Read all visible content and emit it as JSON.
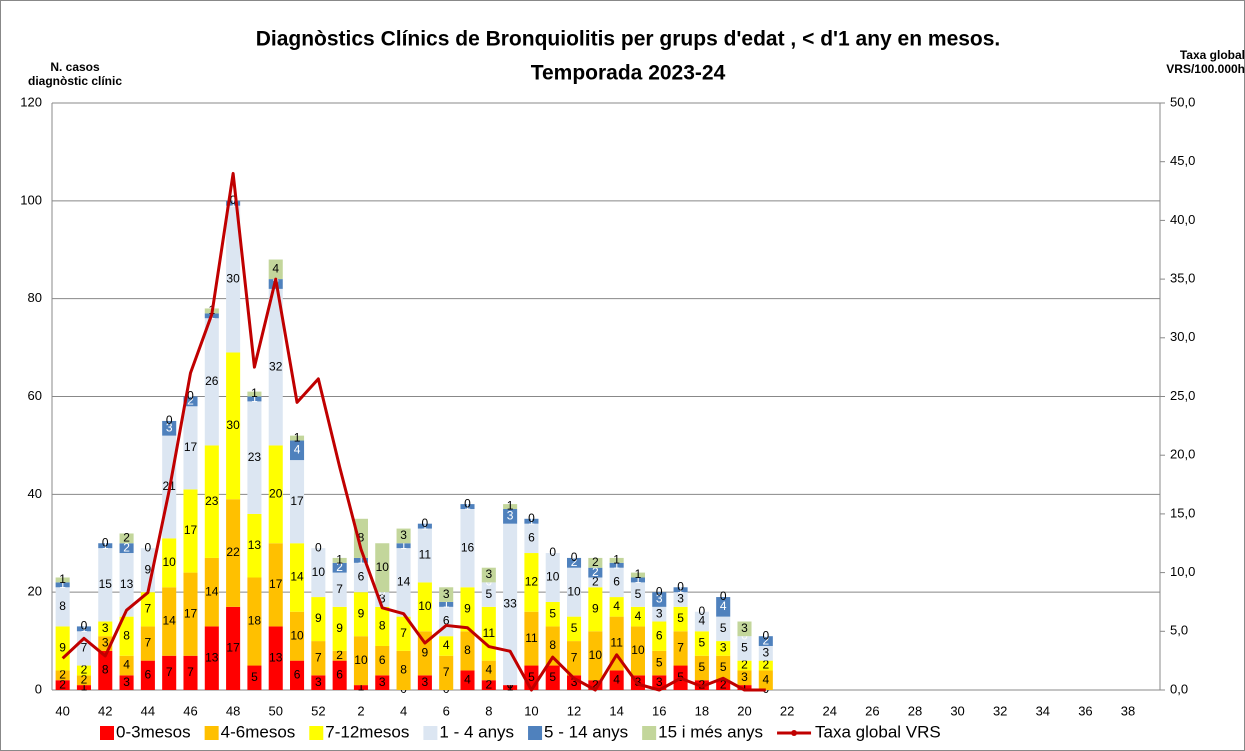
{
  "chart_data": {
    "type": "bar",
    "stacked": true,
    "title": "Diagnòstics Clínics de Bronquiolitis per grups d'edat , < d'1 any en mesos.",
    "subtitle": "Temporada 2023-24",
    "ylabel": "N. casos diagnòstic clínic",
    "y2label": "Taxa global VRS/100.000h",
    "categories": [
      "40",
      null,
      "42",
      null,
      "44",
      null,
      "46",
      null,
      "48",
      null,
      "50",
      null,
      "52",
      null,
      "2",
      null,
      "4",
      null,
      "6",
      null,
      "8",
      null,
      "10",
      null,
      "12",
      null,
      "14",
      null,
      "16",
      null,
      "18",
      null,
      "20",
      null,
      "22",
      null,
      "24",
      null,
      "26",
      null,
      "28",
      null,
      "30",
      null,
      "32",
      null,
      "34",
      null,
      "36",
      null,
      "38",
      null
    ],
    "ylim": [
      0,
      120
    ],
    "yticks": [
      0,
      20,
      40,
      60,
      80,
      100,
      120
    ],
    "y2lim": [
      0,
      50
    ],
    "y2ticks": [
      {
        "value": 0,
        "label": "0,0"
      },
      {
        "value": 5,
        "label": "5,0"
      },
      {
        "value": 10,
        "label": "10,0"
      },
      {
        "value": 15,
        "label": "15,0"
      },
      {
        "value": 20,
        "label": "20,0"
      },
      {
        "value": 25,
        "label": "25,0"
      },
      {
        "value": 30,
        "label": "30,0"
      },
      {
        "value": 35,
        "label": "35,0"
      },
      {
        "value": 40,
        "label": "40,0"
      },
      {
        "value": 45,
        "label": "45,0"
      },
      {
        "value": 50,
        "label": "50,0"
      }
    ],
    "grid": true,
    "legend": "bottom",
    "series": [
      {
        "name": "0-3mesos",
        "color": "#ff0000",
        "values": [
          2,
          1,
          8,
          3,
          6,
          7,
          7,
          13,
          17,
          5,
          13,
          6,
          3,
          6,
          1,
          3,
          0,
          3,
          0,
          4,
          2,
          1,
          5,
          5,
          3,
          2,
          4,
          3,
          3,
          5,
          2,
          2,
          1,
          0,
          null,
          null,
          null,
          null,
          null,
          null,
          null,
          null,
          null,
          null,
          null,
          null,
          null,
          null,
          null,
          null,
          null,
          null
        ]
      },
      {
        "name": "4-6mesos",
        "color": "#ffc000",
        "values": [
          2,
          2,
          3,
          4,
          7,
          14,
          17,
          14,
          22,
          18,
          17,
          10,
          7,
          2,
          10,
          6,
          8,
          9,
          7,
          8,
          4,
          0,
          11,
          8,
          7,
          10,
          11,
          10,
          5,
          7,
          5,
          5,
          3,
          4,
          null,
          null,
          null,
          null,
          null,
          null,
          null,
          null,
          null,
          null,
          null,
          null,
          null,
          null,
          null,
          null,
          null,
          null
        ]
      },
      {
        "name": "7-12mesos",
        "color": "#ffff00",
        "values": [
          9,
          2,
          3,
          8,
          7,
          10,
          17,
          23,
          30,
          13,
          20,
          14,
          9,
          9,
          9,
          8,
          7,
          10,
          4,
          9,
          11,
          0,
          12,
          5,
          5,
          9,
          4,
          4,
          6,
          5,
          5,
          3,
          2,
          2,
          null,
          null,
          null,
          null,
          null,
          null,
          null,
          null,
          null,
          null,
          null,
          null,
          null,
          null,
          null,
          null,
          null,
          null
        ]
      },
      {
        "name": "1 - 4 anys",
        "color": "#dce6f2",
        "values": [
          8,
          7,
          15,
          13,
          9,
          21,
          17,
          26,
          30,
          23,
          32,
          17,
          10,
          7,
          6,
          3,
          14,
          11,
          6,
          16,
          5,
          33,
          6,
          10,
          10,
          2,
          6,
          5,
          3,
          3,
          4,
          5,
          5,
          3,
          null,
          null,
          null,
          null,
          null,
          null,
          null,
          null,
          null,
          null,
          null,
          null,
          null,
          null,
          null,
          null,
          null,
          null
        ]
      },
      {
        "name": "5 - 14 anys",
        "color": "#4f81bd",
        "values": [
          1,
          1,
          1,
          2,
          0,
          3,
          2,
          1,
          1,
          1,
          2,
          4,
          0,
          2,
          1,
          0,
          1,
          1,
          1,
          1,
          0,
          3,
          1,
          0,
          2,
          2,
          1,
          1,
          3,
          1,
          0,
          4,
          0,
          2,
          null,
          null,
          null,
          null,
          null,
          null,
          null,
          null,
          null,
          null,
          null,
          null,
          null,
          null,
          null,
          null,
          null,
          null
        ]
      },
      {
        "name": "15 i més anys",
        "color": "#c3d69b",
        "values": [
          1,
          0,
          0,
          2,
          0,
          0,
          0,
          1,
          0,
          1,
          4,
          1,
          0,
          1,
          8,
          10,
          3,
          0,
          3,
          0,
          3,
          1,
          0,
          0,
          0,
          2,
          1,
          1,
          0,
          0,
          0,
          0,
          3,
          0,
          null,
          null,
          null,
          null,
          null,
          null,
          null,
          null,
          null,
          null,
          null,
          null,
          null,
          null,
          null,
          null,
          null,
          null
        ]
      },
      {
        "name": "Taxa global VRS",
        "color": "#c00000",
        "type": "line",
        "axis": "y2",
        "values": [
          2.7,
          4.4,
          2.9,
          6.8,
          8.3,
          17,
          27,
          32,
          44,
          27.5,
          35,
          24.5,
          26.5,
          19,
          12,
          7,
          6.5,
          4,
          5.5,
          5.3,
          3.7,
          3.3,
          0,
          2.8,
          1,
          0,
          3,
          0.5,
          0,
          1,
          0.3,
          1,
          0,
          0,
          null,
          null,
          null,
          null,
          null,
          null,
          null,
          null,
          null,
          null,
          null,
          null,
          null,
          null,
          null,
          null,
          null,
          null
        ]
      }
    ]
  }
}
